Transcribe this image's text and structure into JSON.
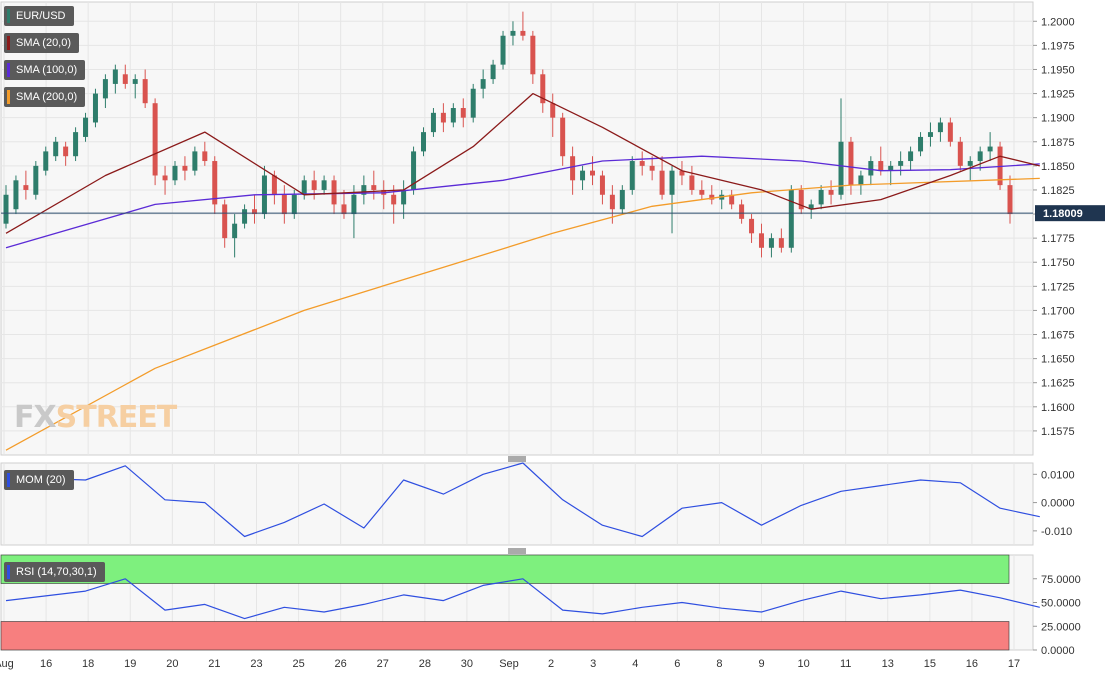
{
  "chart_data": {
    "type": "candlestick",
    "symbol": "EUR/USD",
    "last_price": "1.18009",
    "ylim": [
      1.155,
      1.202
    ],
    "y_ticks": [
      "1.2000",
      "1.1975",
      "1.1950",
      "1.1925",
      "1.1900",
      "1.1875",
      "1.1850",
      "1.1825",
      "1.1800",
      "1.1775",
      "1.1750",
      "1.1725",
      "1.1700",
      "1.1675",
      "1.1650",
      "1.1625",
      "1.1600",
      "1.1575"
    ],
    "x_ticks": [
      "Aug",
      "16",
      "18",
      "19",
      "20",
      "21",
      "23",
      "25",
      "26",
      "27",
      "28",
      "30",
      "Sep",
      "2",
      "3",
      "4",
      "6",
      "8",
      "9",
      "10",
      "11",
      "13",
      "15",
      "16",
      "17"
    ],
    "legends": {
      "price": "EUR/USD",
      "sma20": "SMA (20,0)",
      "sma100": "SMA (100,0)",
      "sma200": "SMA (200,0)",
      "mom": "MOM (20)",
      "rsi": "RSI (14,70,30,1)"
    },
    "colors": {
      "up": "#2e7d6b",
      "down": "#d9534f",
      "sma20": "#8b1a1a",
      "sma100": "#5b2bd6",
      "sma200": "#f39c2a",
      "mom": "#2f4fe0",
      "rsi": "#2f4fe0",
      "overbought": "#7ef07e",
      "oversold": "#f77f7f",
      "last_line": "#2f4f6f",
      "last_label_bg": "#1f3550"
    },
    "candles": [
      [
        1.179,
        1.183,
        1.1785,
        1.182
      ],
      [
        1.1805,
        1.184,
        1.18,
        1.1835
      ],
      [
        1.183,
        1.1845,
        1.1815,
        1.1825
      ],
      [
        1.182,
        1.1855,
        1.1815,
        1.185
      ],
      [
        1.1845,
        1.187,
        1.184,
        1.1865
      ],
      [
        1.186,
        1.188,
        1.1855,
        1.1875
      ],
      [
        1.187,
        1.1875,
        1.185,
        1.186
      ],
      [
        1.186,
        1.189,
        1.1855,
        1.1885
      ],
      [
        1.188,
        1.1905,
        1.1875,
        1.19
      ],
      [
        1.1895,
        1.193,
        1.189,
        1.1925
      ],
      [
        1.192,
        1.1945,
        1.191,
        1.194
      ],
      [
        1.1935,
        1.1955,
        1.1925,
        1.195
      ],
      [
        1.1945,
        1.1955,
        1.193,
        1.1935
      ],
      [
        1.1935,
        1.1945,
        1.192,
        1.194
      ],
      [
        1.194,
        1.195,
        1.191,
        1.1915
      ],
      [
        1.1915,
        1.192,
        1.183,
        1.184
      ],
      [
        1.184,
        1.185,
        1.182,
        1.1835
      ],
      [
        1.1835,
        1.1855,
        1.183,
        1.185
      ],
      [
        1.185,
        1.186,
        1.1835,
        1.1845
      ],
      [
        1.1845,
        1.187,
        1.184,
        1.1865
      ],
      [
        1.1865,
        1.1875,
        1.185,
        1.1855
      ],
      [
        1.1855,
        1.186,
        1.18,
        1.181
      ],
      [
        1.181,
        1.1815,
        1.1765,
        1.1775
      ],
      [
        1.1775,
        1.18,
        1.1755,
        1.179
      ],
      [
        1.179,
        1.181,
        1.1785,
        1.1805
      ],
      [
        1.1805,
        1.182,
        1.179,
        1.18
      ],
      [
        1.18,
        1.185,
        1.1795,
        1.184
      ],
      [
        1.184,
        1.1845,
        1.181,
        1.182
      ],
      [
        1.182,
        1.183,
        1.179,
        1.18
      ],
      [
        1.18,
        1.1825,
        1.1795,
        1.182
      ],
      [
        1.182,
        1.184,
        1.1815,
        1.1835
      ],
      [
        1.1835,
        1.1845,
        1.1815,
        1.1825
      ],
      [
        1.1825,
        1.184,
        1.182,
        1.1835
      ],
      [
        1.1835,
        1.184,
        1.18,
        1.181
      ],
      [
        1.181,
        1.1825,
        1.1795,
        1.18
      ],
      [
        1.18,
        1.183,
        1.1775,
        1.182
      ],
      [
        1.182,
        1.184,
        1.181,
        1.183
      ],
      [
        1.183,
        1.1845,
        1.1815,
        1.1825
      ],
      [
        1.1825,
        1.1835,
        1.1805,
        1.182
      ],
      [
        1.182,
        1.183,
        1.179,
        1.181
      ],
      [
        1.181,
        1.1835,
        1.1795,
        1.1825
      ],
      [
        1.1825,
        1.187,
        1.182,
        1.1865
      ],
      [
        1.1865,
        1.189,
        1.186,
        1.1885
      ],
      [
        1.1885,
        1.191,
        1.188,
        1.1905
      ],
      [
        1.1905,
        1.1915,
        1.1885,
        1.1895
      ],
      [
        1.1895,
        1.1915,
        1.189,
        1.191
      ],
      [
        1.191,
        1.192,
        1.189,
        1.19
      ],
      [
        1.19,
        1.1935,
        1.1895,
        1.193
      ],
      [
        1.193,
        1.195,
        1.192,
        1.194
      ],
      [
        1.194,
        1.196,
        1.1935,
        1.1955
      ],
      [
        1.1955,
        1.199,
        1.195,
        1.1985
      ],
      [
        1.1985,
        1.2,
        1.1975,
        1.199
      ],
      [
        1.199,
        1.201,
        1.198,
        1.1985
      ],
      [
        1.1985,
        1.199,
        1.1935,
        1.1945
      ],
      [
        1.1945,
        1.195,
        1.1905,
        1.1915
      ],
      [
        1.1915,
        1.1925,
        1.188,
        1.19
      ],
      [
        1.19,
        1.1905,
        1.185,
        1.186
      ],
      [
        1.186,
        1.187,
        1.182,
        1.1835
      ],
      [
        1.1835,
        1.185,
        1.1825,
        1.1845
      ],
      [
        1.1845,
        1.186,
        1.183,
        1.184
      ],
      [
        1.184,
        1.1845,
        1.181,
        1.182
      ],
      [
        1.182,
        1.183,
        1.179,
        1.1805
      ],
      [
        1.1805,
        1.183,
        1.18,
        1.1825
      ],
      [
        1.1825,
        1.186,
        1.182,
        1.1855
      ],
      [
        1.1855,
        1.1865,
        1.184,
        1.185
      ],
      [
        1.185,
        1.186,
        1.1835,
        1.1845
      ],
      [
        1.1845,
        1.186,
        1.1815,
        1.182
      ],
      [
        1.182,
        1.185,
        1.178,
        1.1845
      ],
      [
        1.1845,
        1.1855,
        1.183,
        1.184
      ],
      [
        1.184,
        1.185,
        1.182,
        1.1825
      ],
      [
        1.1825,
        1.1835,
        1.1815,
        1.182
      ],
      [
        1.182,
        1.183,
        1.181,
        1.1815
      ],
      [
        1.1815,
        1.1825,
        1.1805,
        1.182
      ],
      [
        1.182,
        1.1825,
        1.1805,
        1.181
      ],
      [
        1.181,
        1.1815,
        1.179,
        1.1795
      ],
      [
        1.1795,
        1.18,
        1.177,
        1.178
      ],
      [
        1.178,
        1.179,
        1.1755,
        1.1765
      ],
      [
        1.1765,
        1.178,
        1.1755,
        1.1775
      ],
      [
        1.1775,
        1.1785,
        1.176,
        1.1765
      ],
      [
        1.1765,
        1.183,
        1.176,
        1.1825
      ],
      [
        1.1825,
        1.183,
        1.18,
        1.1805
      ],
      [
        1.1805,
        1.1815,
        1.1795,
        1.181
      ],
      [
        1.181,
        1.183,
        1.1805,
        1.1825
      ],
      [
        1.1825,
        1.1835,
        1.181,
        1.182
      ],
      [
        1.182,
        1.192,
        1.1815,
        1.1875
      ],
      [
        1.1875,
        1.188,
        1.182,
        1.183
      ],
      [
        1.183,
        1.1845,
        1.182,
        1.184
      ],
      [
        1.184,
        1.186,
        1.183,
        1.1855
      ],
      [
        1.1855,
        1.187,
        1.184,
        1.1845
      ],
      [
        1.1845,
        1.1855,
        1.183,
        1.185
      ],
      [
        1.185,
        1.1865,
        1.184,
        1.1855
      ],
      [
        1.1855,
        1.187,
        1.1845,
        1.1865
      ],
      [
        1.1865,
        1.1885,
        1.186,
        1.188
      ],
      [
        1.188,
        1.1895,
        1.187,
        1.1885
      ],
      [
        1.1885,
        1.19,
        1.1875,
        1.1895
      ],
      [
        1.1895,
        1.19,
        1.187,
        1.1875
      ],
      [
        1.1875,
        1.188,
        1.1845,
        1.185
      ],
      [
        1.185,
        1.186,
        1.1835,
        1.1855
      ],
      [
        1.1855,
        1.187,
        1.1845,
        1.1865
      ],
      [
        1.1865,
        1.1885,
        1.1855,
        1.187
      ],
      [
        1.187,
        1.1875,
        1.1825,
        1.183
      ],
      [
        1.183,
        1.184,
        1.179,
        1.18
      ]
    ],
    "sma20": [
      [
        0,
        1.178
      ],
      [
        10,
        1.184
      ],
      [
        20,
        1.1885
      ],
      [
        30,
        1.182
      ],
      [
        40,
        1.1825
      ],
      [
        47,
        1.187
      ],
      [
        53,
        1.1925
      ],
      [
        60,
        1.189
      ],
      [
        68,
        1.1845
      ],
      [
        76,
        1.1825
      ],
      [
        81,
        1.1805
      ],
      [
        88,
        1.1815
      ],
      [
        95,
        1.184
      ],
      [
        100,
        1.186
      ],
      [
        104,
        1.185
      ]
    ],
    "sma100": [
      [
        0,
        1.1765
      ],
      [
        15,
        1.181
      ],
      [
        25,
        1.182
      ],
      [
        38,
        1.1822
      ],
      [
        50,
        1.1835
      ],
      [
        60,
        1.1855
      ],
      [
        70,
        1.186
      ],
      [
        80,
        1.1855
      ],
      [
        88,
        1.1845
      ],
      [
        95,
        1.1846
      ],
      [
        104,
        1.1852
      ]
    ],
    "sma200": [
      [
        0,
        1.1555
      ],
      [
        15,
        1.164
      ],
      [
        30,
        1.17
      ],
      [
        45,
        1.1748
      ],
      [
        55,
        1.178
      ],
      [
        65,
        1.1808
      ],
      [
        75,
        1.1822
      ],
      [
        85,
        1.183
      ],
      [
        104,
        1.1837
      ]
    ],
    "mom_ylim": [
      -0.015,
      0.014
    ],
    "mom_ticks": [
      "0.0100",
      "0.0000",
      "-0.010"
    ],
    "mom": [
      [
        0,
        0.009
      ],
      [
        8,
        0.008
      ],
      [
        12,
        0.013
      ],
      [
        16,
        0.001
      ],
      [
        20,
        0.0
      ],
      [
        24,
        -0.012
      ],
      [
        28,
        -0.007
      ],
      [
        32,
        -0.0005
      ],
      [
        36,
        -0.009
      ],
      [
        40,
        0.008
      ],
      [
        44,
        0.003
      ],
      [
        48,
        0.01
      ],
      [
        52,
        0.014
      ],
      [
        56,
        0.001
      ],
      [
        60,
        -0.008
      ],
      [
        64,
        -0.012
      ],
      [
        68,
        -0.002
      ],
      [
        72,
        0.0
      ],
      [
        76,
        -0.008
      ],
      [
        80,
        -0.001
      ],
      [
        84,
        0.004
      ],
      [
        88,
        0.006
      ],
      [
        92,
        0.008
      ],
      [
        96,
        0.007
      ],
      [
        100,
        -0.002
      ],
      [
        104,
        -0.005
      ]
    ],
    "rsi_ylim": [
      0,
      100
    ],
    "rsi_ticks": [
      "75.0000",
      "50.0000",
      "25.0000",
      "0.0000"
    ],
    "rsi_bands": [
      30,
      70
    ],
    "rsi": [
      [
        0,
        52
      ],
      [
        8,
        62
      ],
      [
        12,
        75
      ],
      [
        16,
        42
      ],
      [
        20,
        48
      ],
      [
        24,
        33
      ],
      [
        28,
        45
      ],
      [
        32,
        40
      ],
      [
        36,
        48
      ],
      [
        40,
        58
      ],
      [
        44,
        52
      ],
      [
        48,
        68
      ],
      [
        52,
        75
      ],
      [
        56,
        42
      ],
      [
        60,
        38
      ],
      [
        64,
        45
      ],
      [
        68,
        50
      ],
      [
        72,
        44
      ],
      [
        76,
        40
      ],
      [
        80,
        52
      ],
      [
        84,
        62
      ],
      [
        88,
        54
      ],
      [
        92,
        58
      ],
      [
        96,
        63
      ],
      [
        100,
        55
      ],
      [
        104,
        45
      ]
    ],
    "watermark": {
      "fx": "FX",
      "street": "STREET"
    }
  }
}
